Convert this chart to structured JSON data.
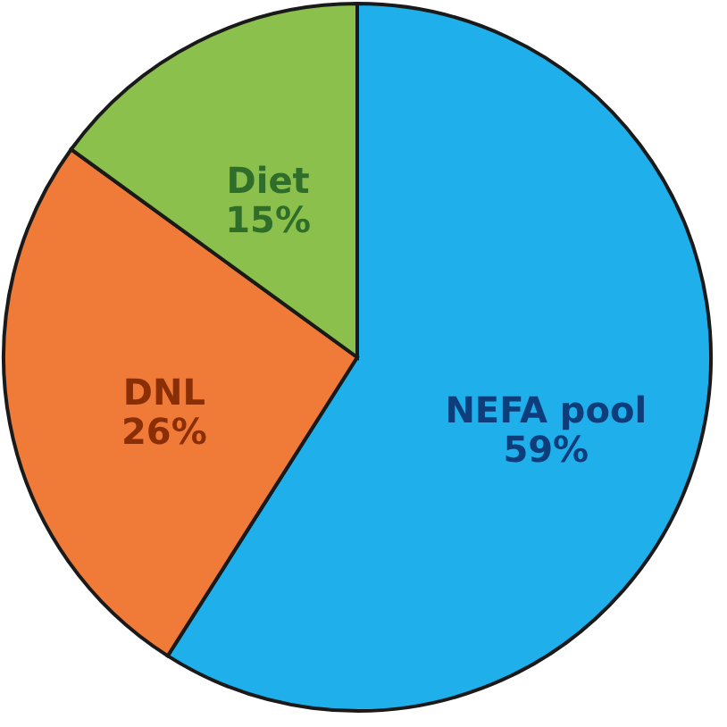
{
  "chart_data": {
    "type": "pie",
    "categories": [
      "NEFA pool",
      "DNL",
      "Diet"
    ],
    "values": [
      59,
      26,
      15
    ],
    "colors": [
      "#1fb0ec",
      "#f07a38",
      "#8cc04c"
    ],
    "value_labels": [
      "59%",
      "26%",
      "15%"
    ],
    "legend": false
  }
}
